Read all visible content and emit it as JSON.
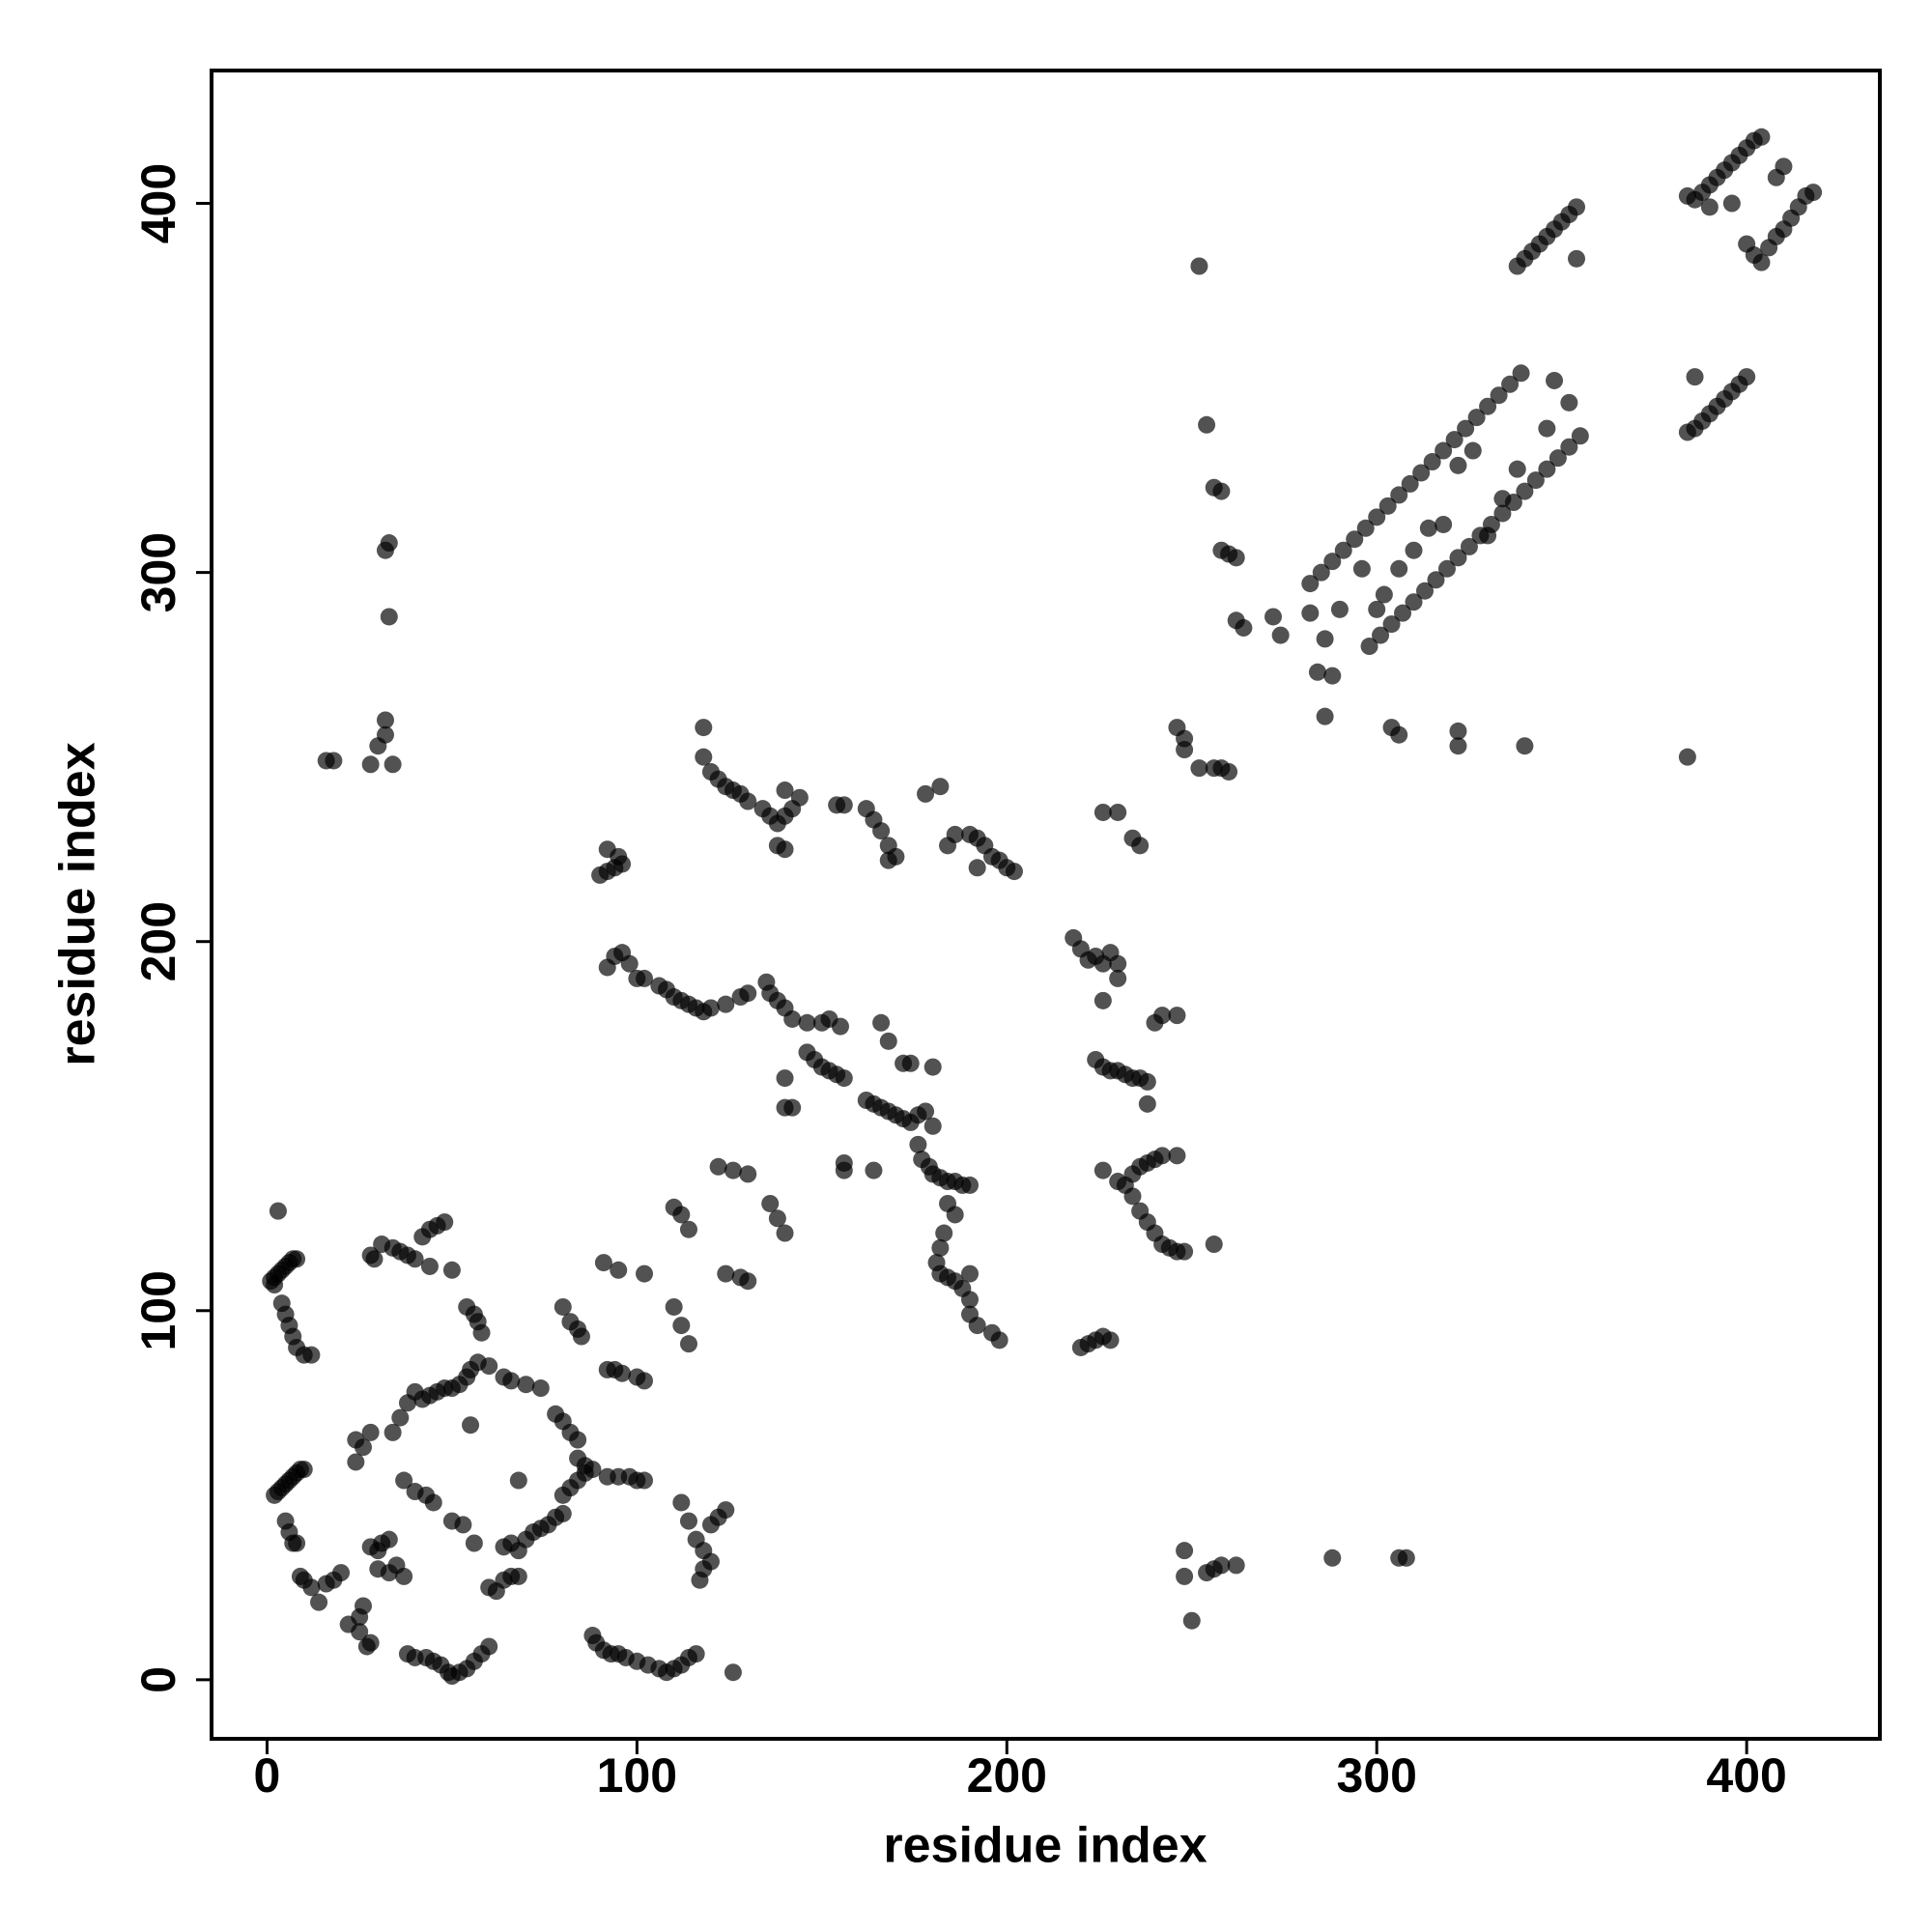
{
  "chart_data": {
    "type": "scatter",
    "x_label": "residue index",
    "y_label": "residue index",
    "color": "#000000",
    "opacity": 0.68,
    "xlim": [
      -15,
      436
    ],
    "ylim": [
      -16,
      436
    ],
    "xticks": [
      0,
      100,
      200,
      300,
      400
    ],
    "yticks": [
      0,
      100,
      200,
      300,
      400
    ],
    "x": [
      2,
      3,
      4,
      5,
      6,
      7,
      8,
      1,
      2,
      3,
      4,
      5,
      6,
      7,
      8,
      10,
      12,
      2,
      3,
      4,
      5,
      6,
      7,
      8,
      9,
      10,
      5,
      6,
      7,
      8,
      9,
      10,
      12,
      14,
      16,
      18,
      20,
      22,
      25,
      26,
      27,
      28,
      25,
      24,
      24,
      26,
      28,
      28,
      30,
      31,
      33,
      28,
      29,
      31,
      34,
      36,
      38,
      40,
      42,
      44,
      46,
      48,
      44,
      50,
      34,
      36,
      38,
      40,
      42,
      44,
      46,
      48,
      50,
      52,
      54,
      55,
      57,
      60,
      30,
      33,
      35,
      37,
      38,
      40,
      43,
      45,
      37,
      40,
      43,
      45,
      50,
      53,
      56,
      55,
      54,
      56,
      57,
      58,
      60,
      62,
      64,
      66,
      68,
      68,
      70,
      72,
      74,
      76,
      78,
      80,
      80,
      82,
      84,
      86,
      88,
      86,
      84,
      64,
      66,
      68,
      64,
      66,
      70,
      74,
      78,
      80,
      82,
      84,
      47,
      49,
      50,
      52,
      54,
      56,
      58,
      60,
      80,
      82,
      84,
      85,
      88,
      89,
      91,
      93,
      95,
      97,
      100,
      103,
      106,
      108,
      110,
      112,
      114,
      116,
      92,
      95,
      98,
      100,
      102,
      92,
      94,
      96,
      100,
      102,
      91,
      95,
      102,
      110,
      112,
      114,
      110,
      112,
      114,
      112,
      114,
      116,
      118,
      120,
      118,
      117,
      120,
      122,
      124,
      126,
      90,
      92,
      94,
      95,
      92,
      96,
      92,
      94,
      96,
      98,
      100,
      102,
      106,
      108,
      110,
      112,
      114,
      116,
      118,
      120,
      124,
      128,
      130,
      135,
      136,
      138,
      140,
      142,
      146,
      150,
      152,
      155,
      146,
      148,
      150,
      152,
      154,
      156,
      140,
      140,
      142,
      118,
      118,
      120,
      122,
      124,
      126,
      128,
      130,
      134,
      136,
      138,
      140,
      142,
      144,
      140,
      140,
      138,
      154,
      156,
      162,
      164,
      166,
      168,
      170,
      168,
      178,
      182,
      184,
      190,
      192,
      194,
      196,
      198,
      200,
      202,
      192,
      186,
      122,
      126,
      130,
      136,
      138,
      140,
      124,
      128,
      130,
      156,
      156,
      164,
      166,
      168,
      162,
      164,
      166,
      168,
      170,
      172,
      174,
      176,
      178,
      180,
      176,
      177,
      179,
      180,
      182,
      184,
      186,
      188,
      190,
      172,
      174,
      180,
      184,
      186,
      183,
      182,
      181,
      182,
      184,
      186,
      188,
      190,
      190,
      192,
      196,
      198,
      190,
      218,
      220,
      222,
      224,
      226,
      228,
      230,
      226,
      230,
      224,
      226,
      228,
      230,
      232,
      234,
      236,
      238,
      238,
      240,
      242,
      246,
      226,
      230,
      232,
      234,
      236,
      238,
      240,
      242,
      246,
      234,
      236,
      238,
      240,
      242,
      244,
      246,
      248,
      256,
      220,
      222,
      224,
      226,
      228,
      226,
      230,
      234,
      236,
      246,
      248,
      248,
      252,
      256,
      258,
      260,
      252,
      248,
      248,
      250,
      254,
      256,
      258,
      262,
      288,
      306,
      308,
      254,
      256,
      258,
      258,
      260,
      262,
      262,
      264,
      272,
      274,
      282,
      285,
      288,
      291,
      294,
      297,
      300,
      303,
      306,
      309,
      312,
      315,
      318,
      321,
      324,
      327,
      330,
      333,
      336,
      339,
      298,
      301,
      304,
      307,
      310,
      313,
      316,
      319,
      322,
      325,
      328,
      331,
      334,
      337,
      340,
      343,
      346,
      349,
      352,
      355,
      296,
      302,
      306,
      310,
      314,
      318,
      322,
      326,
      330,
      334,
      338,
      346,
      348,
      352,
      300,
      290,
      286,
      282,
      284,
      288,
      286,
      304,
      306,
      322,
      322,
      340,
      384,
      338,
      340,
      342,
      344,
      346,
      348,
      350,
      352,
      354,
      354,
      384,
      386,
      388,
      390,
      392,
      394,
      396,
      398,
      400,
      386,
      384,
      386,
      388,
      390,
      392,
      394,
      396,
      398,
      400,
      402,
      404,
      390,
      396,
      402,
      404,
      406,
      408,
      410,
      412,
      414,
      416,
      418,
      408,
      410,
      400,
      16,
      18,
      28,
      30,
      32,
      32,
      34,
      32,
      33,
      33
    ],
    "values": [
      109,
      110,
      111,
      112,
      113,
      114,
      114,
      108,
      107,
      127,
      102,
      99,
      96,
      93,
      90,
      88,
      88,
      50,
      51,
      52,
      53,
      54,
      55,
      56,
      57,
      57,
      43,
      40,
      37,
      37,
      28,
      27,
      25,
      21,
      26,
      27,
      29,
      15,
      17,
      20,
      9,
      10,
      13,
      59,
      65,
      63,
      67,
      36,
      35,
      37,
      38,
      115,
      114,
      118,
      117,
      116,
      115,
      114,
      120,
      122,
      123,
      124,
      112,
      111,
      67,
      71,
      75,
      78,
      76,
      77,
      78,
      79,
      79,
      80,
      82,
      84,
      86,
      85,
      30,
      29,
      31,
      28,
      7,
      6,
      6,
      5,
      54,
      51,
      50,
      48,
      43,
      42,
      37,
      69,
      101,
      99,
      97,
      94,
      25,
      24,
      27,
      28,
      28,
      35,
      38,
      40,
      41,
      42,
      44,
      45,
      50,
      52,
      54,
      56,
      57,
      58,
      60,
      36,
      37,
      54,
      82,
      81,
      80,
      79,
      72,
      70,
      67,
      65,
      4,
      2,
      1,
      2,
      3,
      5,
      7,
      9,
      101,
      97,
      95,
      93,
      12,
      10,
      8,
      7,
      7,
      6,
      5,
      4,
      3,
      2,
      3,
      4,
      6,
      7,
      55,
      55,
      55,
      54,
      54,
      84,
      84,
      83,
      82,
      81,
      113,
      111,
      110,
      101,
      96,
      91,
      128,
      126,
      122,
      48,
      43,
      38,
      35,
      32,
      30,
      27,
      42,
      44,
      46,
      2,
      218,
      219,
      220,
      223,
      225,
      221,
      193,
      196,
      197,
      194,
      190,
      190,
      188,
      187,
      185,
      184,
      183,
      182,
      181,
      182,
      183,
      185,
      186,
      189,
      186,
      184,
      182,
      179,
      178,
      178,
      179,
      177,
      170,
      168,
      166,
      165,
      164,
      163,
      163,
      155,
      155,
      250,
      258,
      246,
      244,
      242,
      241,
      240,
      238,
      236,
      234,
      232,
      234,
      236,
      239,
      241,
      225,
      226,
      237,
      237,
      236,
      233,
      230,
      226,
      223,
      222,
      240,
      242,
      226,
      229,
      228,
      226,
      223,
      222,
      220,
      219,
      220,
      229,
      139,
      138,
      137,
      129,
      125,
      121,
      110,
      109,
      108,
      140,
      138,
      138,
      178,
      173,
      157,
      156,
      155,
      154,
      153,
      152,
      151,
      153,
      154,
      150,
      145,
      141,
      139,
      137,
      136,
      135,
      135,
      134,
      134,
      167,
      167,
      166,
      129,
      126,
      121,
      117,
      113,
      110,
      109,
      108,
      106,
      103,
      99,
      96,
      94,
      92,
      110,
      201,
      198,
      195,
      196,
      194,
      197,
      190,
      184,
      194,
      168,
      166,
      165,
      165,
      164,
      163,
      163,
      162,
      156,
      178,
      180,
      180,
      138,
      135,
      134,
      137,
      139,
      140,
      141,
      142,
      142,
      131,
      127,
      124,
      121,
      118,
      117,
      116,
      116,
      118,
      90,
      91,
      92,
      93,
      92,
      235,
      235,
      228,
      226,
      258,
      255,
      252,
      247,
      247,
      247,
      246,
      383,
      35,
      28,
      16,
      29,
      30,
      31,
      31,
      33,
      33,
      33,
      340,
      323,
      322,
      306,
      305,
      304,
      287,
      285,
      288,
      283,
      297,
      300,
      303,
      306,
      309,
      312,
      315,
      318,
      321,
      324,
      327,
      330,
      333,
      336,
      339,
      342,
      345,
      348,
      351,
      354,
      280,
      283,
      286,
      289,
      292,
      295,
      298,
      301,
      304,
      307,
      310,
      313,
      316,
      319,
      322,
      325,
      328,
      331,
      334,
      337,
      301,
      294,
      301,
      306,
      312,
      313,
      329,
      333,
      310,
      320,
      328,
      339,
      352,
      346,
      290,
      290,
      282,
      289,
      273,
      272,
      261,
      258,
      256,
      257,
      253,
      253,
      250,
      383,
      385,
      387,
      389,
      391,
      393,
      395,
      397,
      399,
      385,
      338,
      339,
      341,
      343,
      345,
      347,
      349,
      351,
      353,
      353,
      402,
      401,
      403,
      405,
      407,
      409,
      411,
      413,
      415,
      417,
      418,
      399,
      400,
      386,
      384,
      388,
      391,
      393,
      396,
      399,
      402,
      403,
      407,
      410,
      389,
      249,
      249,
      248,
      253,
      256,
      260,
      248,
      306,
      308,
      288
    ]
  }
}
